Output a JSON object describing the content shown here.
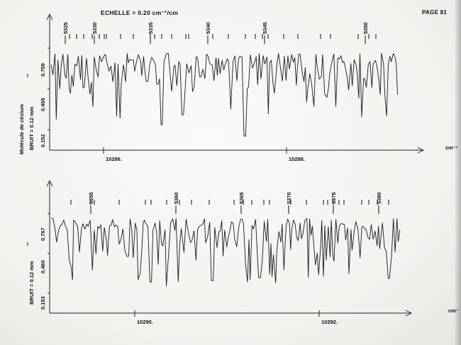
{
  "header": {
    "scale_label": "ECHELLE = 0.20 cm⁻¹/cm",
    "page_label": "PAGE 81"
  },
  "chart_data": [
    {
      "type": "line",
      "xlabel": "cm⁻¹",
      "line_numbers": [
        "5325",
        "5330",
        "5335",
        "5340",
        "5345",
        "5350"
      ],
      "xticks": [
        "10286.",
        "10288."
      ],
      "y_side_labels": [
        "Molécule de césium",
        "BRUIT = 0.12 mm"
      ],
      "yticks": [
        "0.759",
        "0.455",
        "0.152"
      ],
      "marker_I": "I",
      "grid": false
    },
    {
      "type": "line",
      "xlabel": "cm⁻",
      "line_numbers": [
        "5355",
        "5360",
        "5365",
        "5370",
        "5375",
        "5380"
      ],
      "xticks": [
        "10290.",
        "10292."
      ],
      "y_side_labels": [
        "BRUIT = 0.12 mm"
      ],
      "yticks": [
        "0.767",
        "0.460",
        "0.153"
      ],
      "marker_I": "I",
      "grid": false
    }
  ]
}
